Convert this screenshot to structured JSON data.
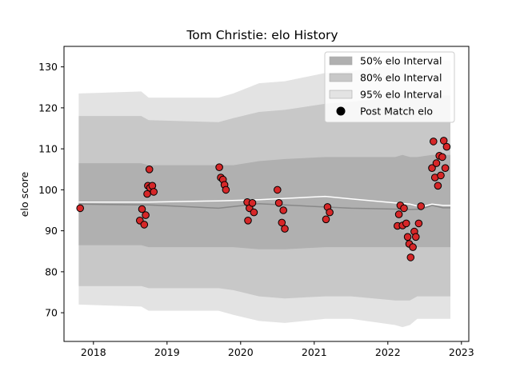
{
  "chart_data": {
    "type": "line",
    "title": "Tom Christie: elo History",
    "xlabel": "",
    "ylabel": "elo score",
    "xlim": [
      2017.6,
      2023.1
    ],
    "ylim": [
      63,
      135
    ],
    "x_ticks": [
      2018,
      2019,
      2020,
      2021,
      2022,
      2023
    ],
    "y_ticks": [
      70,
      80,
      90,
      100,
      110,
      120,
      130
    ],
    "legend_position": "top-right",
    "legend": [
      {
        "label": "50% elo Interval",
        "kind": "band50"
      },
      {
        "label": "80% elo Interval",
        "kind": "band80"
      },
      {
        "label": "95% elo Interval",
        "kind": "band95"
      },
      {
        "label": "Post Match elo",
        "kind": "marker"
      }
    ],
    "colors": {
      "band50": "#b0b0b0",
      "band80": "#c8c8c8",
      "band95": "#e3e3e3",
      "mean_line": "#ffffff",
      "median_line": "#888888",
      "marker_fill": "#d62728",
      "marker_edge": "#000000"
    },
    "bands": {
      "x": [
        2017.8,
        2018.65,
        2018.75,
        2019.7,
        2019.9,
        2020.25,
        2020.6,
        2021.15,
        2021.5,
        2022.1,
        2022.2,
        2022.3,
        2022.4,
        2022.6,
        2022.75,
        2022.85
      ],
      "lower95": [
        72,
        71.5,
        70.5,
        70.5,
        69.5,
        68,
        67.5,
        68.5,
        68.5,
        67,
        66.5,
        67,
        68.5,
        68.5,
        68.5,
        68.5
      ],
      "upper95": [
        123.5,
        124,
        122.5,
        122.5,
        123.5,
        126,
        126.5,
        128.5,
        129,
        130.5,
        131.5,
        130.5,
        130,
        131,
        131.5,
        131.5
      ],
      "lower80": [
        76.5,
        76.5,
        76,
        76,
        75.5,
        74,
        73.5,
        74,
        74,
        73,
        73,
        73,
        74,
        74,
        74,
        74
      ],
      "upper80": [
        118,
        118,
        117,
        116.5,
        117.5,
        119,
        119.5,
        121,
        121.5,
        122.5,
        123,
        122.5,
        122.5,
        123,
        123,
        123
      ],
      "lower50": [
        86.5,
        86.5,
        86,
        86,
        86,
        85.5,
        85.5,
        86,
        86,
        86,
        86,
        86,
        86,
        86,
        86,
        86
      ],
      "upper50": [
        106.5,
        106.5,
        106,
        106,
        106,
        107,
        107.5,
        108,
        108,
        108,
        108.5,
        108,
        108,
        108.5,
        108.5,
        108.5
      ]
    },
    "mean_line": {
      "x": [
        2017.8,
        2018.75,
        2019.7,
        2020.25,
        2021.15,
        2021.5,
        2022.1,
        2022.3,
        2022.45,
        2022.6,
        2022.75,
        2022.85
      ],
      "y": [
        97,
        97,
        97.3,
        97.6,
        98.4,
        97.8,
        96.8,
        96.5,
        95.8,
        96.5,
        96.2,
        96.2
      ]
    },
    "median_line": {
      "x": [
        2017.8,
        2018.75,
        2019.7,
        2020.25,
        2021.15,
        2021.5,
        2022.1,
        2022.3,
        2022.45,
        2022.6,
        2022.75,
        2022.85
      ],
      "y": [
        96.5,
        96.3,
        95.5,
        96.6,
        95.8,
        95.5,
        95.3,
        95.2,
        95.3,
        96.2,
        95.6,
        95.6
      ]
    },
    "series": [
      {
        "name": "Post Match elo",
        "x": [
          2017.82,
          2018.63,
          2018.66,
          2018.69,
          2018.71,
          2018.73,
          2018.74,
          2018.76,
          2018.77,
          2018.8,
          2018.82,
          2019.71,
          2019.73,
          2019.76,
          2019.78,
          2019.8,
          2020.09,
          2020.1,
          2020.12,
          2020.16,
          2020.18,
          2020.5,
          2020.52,
          2020.56,
          2020.58,
          2020.6,
          2021.16,
          2021.18,
          2021.21,
          2022.13,
          2022.15,
          2022.17,
          2022.2,
          2022.22,
          2022.25,
          2022.27,
          2022.29,
          2022.31,
          2022.34,
          2022.36,
          2022.38,
          2022.42,
          2022.45,
          2022.6,
          2022.62,
          2022.64,
          2022.66,
          2022.68,
          2022.7,
          2022.72,
          2022.74,
          2022.76,
          2022.78,
          2022.8
        ],
        "y": [
          95.5,
          92.5,
          95.3,
          91.5,
          93.8,
          99,
          101,
          105,
          100.5,
          101,
          99.5,
          105.5,
          103,
          102.5,
          101.2,
          100,
          97,
          92.5,
          95.5,
          96.8,
          94.5,
          100,
          96.8,
          92,
          95,
          90.5,
          92.8,
          95.8,
          94.5,
          91.2,
          94,
          96.2,
          91.3,
          95.5,
          91.8,
          88.5,
          86.8,
          83.5,
          86,
          89.8,
          88.5,
          91.8,
          96,
          105.3,
          111.8,
          103,
          106.5,
          101,
          108.3,
          103.5,
          108,
          112,
          105.3,
          110.5
        ]
      }
    ]
  }
}
